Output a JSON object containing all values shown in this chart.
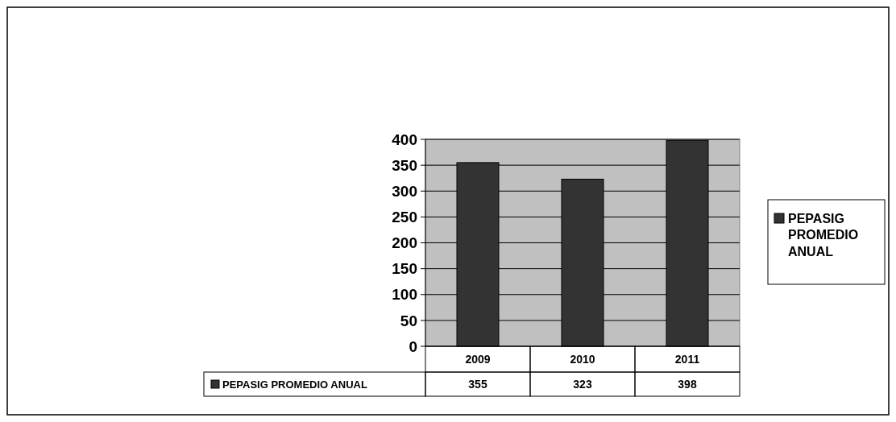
{
  "chart_data": {
    "type": "bar",
    "categories": [
      "2009",
      "2010",
      "2011"
    ],
    "series": [
      {
        "name": "PEPASIG PROMEDIO ANUAL",
        "color": "#333333",
        "values": [
          355,
          323,
          398
        ]
      }
    ],
    "ylim": [
      0,
      400
    ],
    "yticks": [
      0,
      50,
      100,
      150,
      200,
      250,
      300,
      350,
      400
    ],
    "grid": "y",
    "legend": "right",
    "data_labels": true
  }
}
